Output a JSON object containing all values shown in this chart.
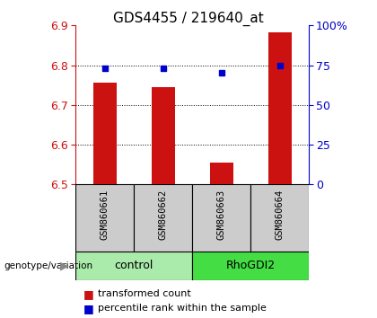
{
  "title": "GDS4455 / 219640_at",
  "samples": [
    "GSM860661",
    "GSM860662",
    "GSM860663",
    "GSM860664"
  ],
  "red_values": [
    6.755,
    6.745,
    6.555,
    6.883
  ],
  "blue_values": [
    6.793,
    6.793,
    6.782,
    6.8
  ],
  "ylim": [
    6.5,
    6.9
  ],
  "y_ticks": [
    6.5,
    6.6,
    6.7,
    6.8,
    6.9
  ],
  "right_ticks": [
    0,
    25,
    50,
    75,
    100
  ],
  "right_tick_labels": [
    "0",
    "25",
    "50",
    "75",
    "100%"
  ],
  "groups": [
    {
      "label": "control",
      "samples": [
        0,
        1
      ],
      "color": "#aaeaaa"
    },
    {
      "label": "RhoGDI2",
      "samples": [
        2,
        3
      ],
      "color": "#44dd44"
    }
  ],
  "genotype_label": "genotype/variation",
  "legend_red": "transformed count",
  "legend_blue": "percentile rank within the sample",
  "bar_color": "#cc1111",
  "dot_color": "#0000cc",
  "bar_width": 0.4,
  "label_area_color": "#cccccc",
  "title_fontsize": 11,
  "tick_fontsize": 9,
  "sample_fontsize": 7.5,
  "group_fontsize": 9,
  "legend_fontsize": 8
}
